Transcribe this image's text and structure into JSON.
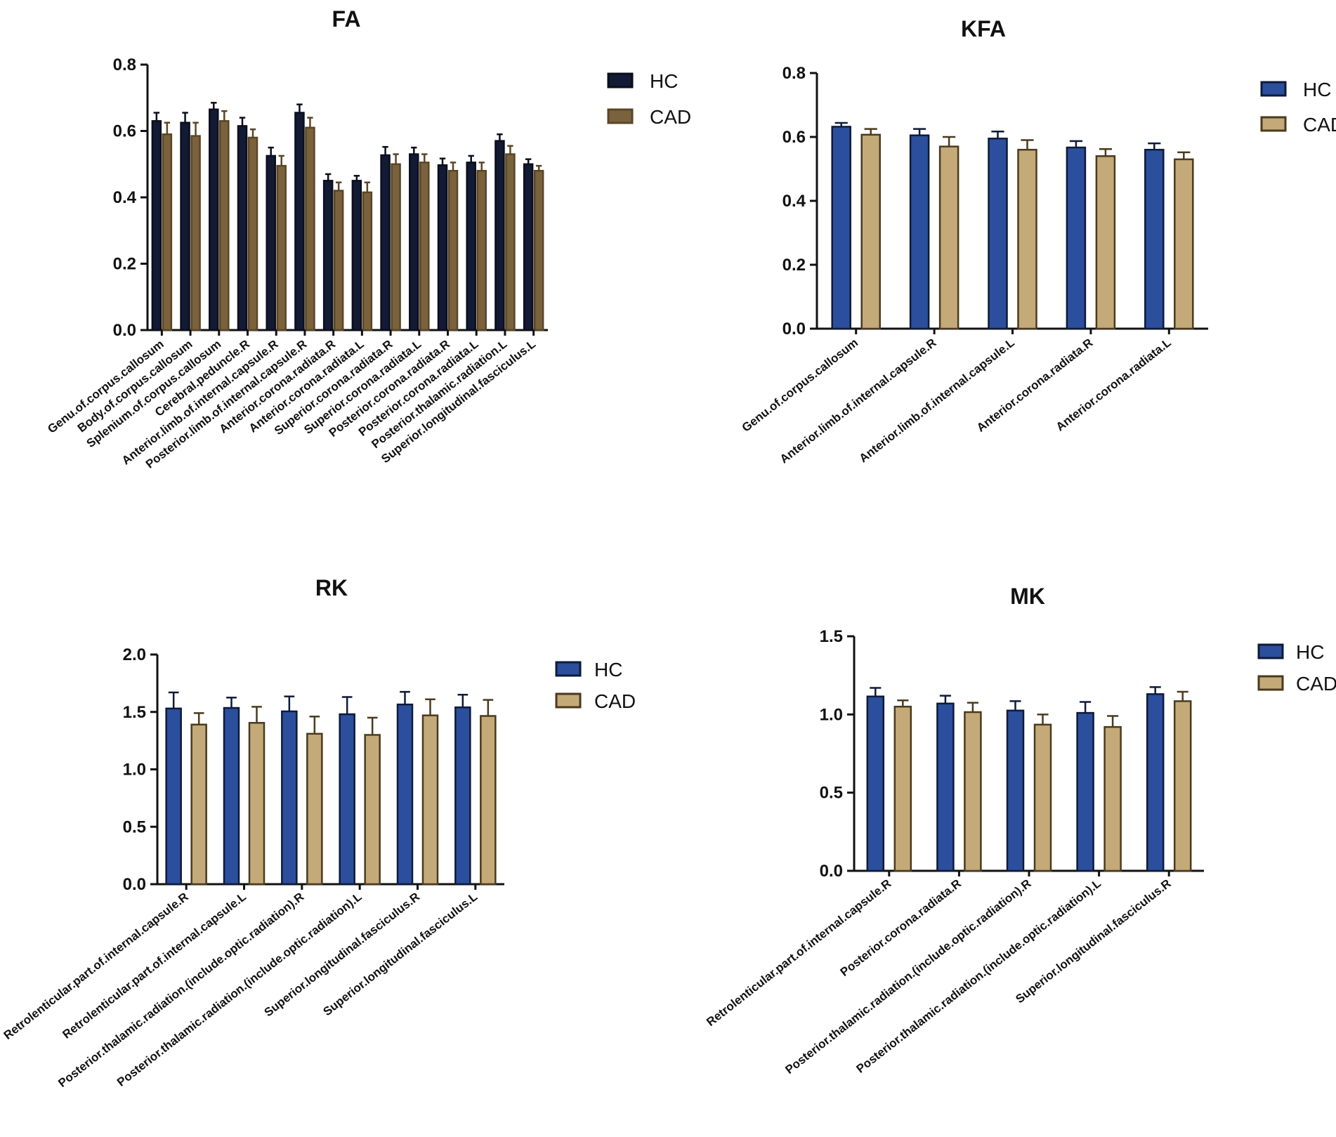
{
  "chart_data": [
    {
      "type": "bar",
      "title": "FA",
      "xlabel": "",
      "ylabel": "",
      "ylim": [
        0,
        0.8
      ],
      "yticks": [
        "0.0",
        "0.2",
        "0.4",
        "0.6",
        "0.8"
      ],
      "legend_position": "top-right",
      "categories": [
        "Genu.of.corpus.callosum",
        "Body.of.corpus.callosum",
        "Splenium.of.corpus.callosum",
        "Cerebral.peduncle.R",
        "Anterior.limb.of.internal.capsule.R",
        "Posterior.limb.of.internal.capsule.R",
        "Anterior.corona.radiata.R",
        "Anterior.corona.radiata.L",
        "Superior.corona.radiata.R",
        "Superior.corona.radiata.L",
        "Posterior.corona.radiata.R",
        "Posterior.corona.radiata.L",
        "Posterior.thalamic.radiation.L",
        "Superior.longitudinal.fasciculus.L"
      ],
      "series": [
        {
          "name": "HC",
          "color": "#131a33",
          "edge": "#0a0e1c",
          "values": [
            0.63,
            0.625,
            0.665,
            0.615,
            0.525,
            0.655,
            0.45,
            0.45,
            0.527,
            0.53,
            0.497,
            0.505,
            0.57,
            0.5
          ],
          "errors": [
            0.025,
            0.03,
            0.02,
            0.025,
            0.025,
            0.025,
            0.02,
            0.015,
            0.025,
            0.02,
            0.02,
            0.02,
            0.02,
            0.015
          ]
        },
        {
          "name": "CAD",
          "color": "#7a623c",
          "edge": "#5a4526",
          "values": [
            0.59,
            0.585,
            0.63,
            0.58,
            0.495,
            0.61,
            0.42,
            0.415,
            0.5,
            0.505,
            0.48,
            0.48,
            0.53,
            0.48
          ],
          "errors": [
            0.035,
            0.04,
            0.03,
            0.025,
            0.03,
            0.03,
            0.025,
            0.03,
            0.03,
            0.025,
            0.025,
            0.025,
            0.025,
            0.015
          ]
        }
      ]
    },
    {
      "type": "bar",
      "title": "KFA",
      "xlabel": "",
      "ylabel": "",
      "ylim": [
        0,
        0.8
      ],
      "yticks": [
        "0.0",
        "0.2",
        "0.4",
        "0.6",
        "0.8"
      ],
      "legend_position": "top-right",
      "categories": [
        "Genu.of.corpus.callosum",
        "Anterior.limb.of.internal.capsule.R",
        "Anterior.limb.of.internal.capsule.L",
        "Anterior.corona.radiata.R",
        "Anterior.corona.radiata.L"
      ],
      "series": [
        {
          "name": "HC",
          "color": "#2b4f9c",
          "edge": "#0e1a38",
          "values": [
            0.632,
            0.605,
            0.595,
            0.567,
            0.56
          ],
          "errors": [
            0.012,
            0.02,
            0.022,
            0.02,
            0.02
          ]
        },
        {
          "name": "CAD",
          "color": "#c4aa78",
          "edge": "#4a3a1e",
          "values": [
            0.607,
            0.57,
            0.56,
            0.54,
            0.53
          ],
          "errors": [
            0.018,
            0.03,
            0.03,
            0.022,
            0.022
          ]
        }
      ]
    },
    {
      "type": "bar",
      "title": "RK",
      "xlabel": "",
      "ylabel": "",
      "ylim": [
        0,
        2.0
      ],
      "yticks": [
        "0.0",
        "0.5",
        "1.0",
        "1.5",
        "2.0"
      ],
      "legend_position": "top-right",
      "categories": [
        "Retrolenticular.part.of.internal.capsule.R",
        "Retrolenticular.part.of.internal.capsule.L",
        "Posterior.thalamic.radiation.(include.optic.radiation).R",
        "Posterior.thalamic.radiation.(include.optic.radiation).L",
        "Superior.longitudinal.fasciculus.R",
        "Superior.longitudinal.fasciculus.L"
      ],
      "series": [
        {
          "name": "HC",
          "color": "#2b4f9c",
          "edge": "#0e1a38",
          "values": [
            1.53,
            1.535,
            1.505,
            1.48,
            1.565,
            1.54
          ],
          "errors": [
            0.14,
            0.09,
            0.13,
            0.15,
            0.11,
            0.11
          ]
        },
        {
          "name": "CAD",
          "color": "#c4aa78",
          "edge": "#4a3a1e",
          "values": [
            1.39,
            1.405,
            1.31,
            1.3,
            1.47,
            1.465
          ],
          "errors": [
            0.1,
            0.14,
            0.15,
            0.15,
            0.14,
            0.14
          ]
        }
      ]
    },
    {
      "type": "bar",
      "title": "MK",
      "xlabel": "",
      "ylabel": "",
      "ylim": [
        0,
        1.5
      ],
      "yticks": [
        "0.0",
        "0.5",
        "1.0",
        "1.5"
      ],
      "legend_position": "top-right",
      "categories": [
        "Retrolenticular.part.of.internal.capsule.R",
        "Posterior.corona.radiata.R",
        "Posterior.thalamic.radiation.(include.optic.radiation).R",
        "Posterior.thalamic.radiation.(include.optic.radiation).L",
        "Superior.longitudinal.fasciculus.R"
      ],
      "series": [
        {
          "name": "HC",
          "color": "#2b4f9c",
          "edge": "#0e1a38",
          "values": [
            1.115,
            1.07,
            1.025,
            1.01,
            1.13
          ],
          "errors": [
            0.055,
            0.05,
            0.06,
            0.07,
            0.045
          ]
        },
        {
          "name": "CAD",
          "color": "#c4aa78",
          "edge": "#4a3a1e",
          "values": [
            1.05,
            1.015,
            0.935,
            0.92,
            1.085
          ],
          "errors": [
            0.04,
            0.06,
            0.065,
            0.07,
            0.06
          ]
        }
      ]
    }
  ]
}
